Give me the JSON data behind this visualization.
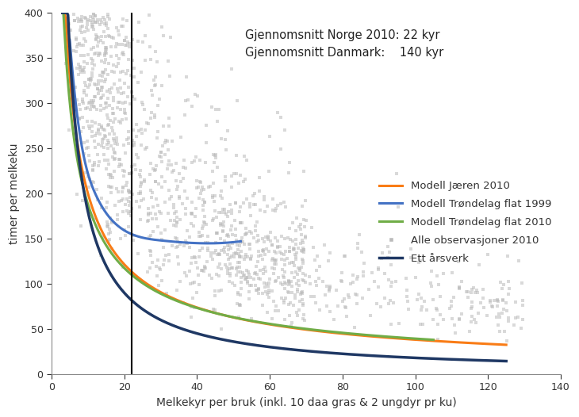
{
  "title_line1": "Gjennomsnitt Norge 2010: 22 kyr",
  "title_line2": "Gjennomsnitt Danmark:    140 kyr",
  "xlabel": "Melkekyr per bruk (inkl. 10 daa gras & 2 ungdyr pr ku)",
  "ylabel": "timer per melkeku",
  "xlim": [
    0,
    140
  ],
  "ylim": [
    0,
    400
  ],
  "xticks": [
    0,
    20,
    40,
    60,
    80,
    100,
    120,
    140
  ],
  "yticks": [
    0,
    50,
    100,
    150,
    200,
    250,
    300,
    350,
    400
  ],
  "vertical_line_x": 22,
  "legend_labels": [
    "Modell Jæren 2010",
    "Modell Trøndelag flat 1999",
    "Modell Trøndelag flat 2010",
    "Alle observasjoner 2010",
    "Ett årsverk"
  ],
  "legend_colors": [
    "#F97C16",
    "#4472C4",
    "#70AD47",
    "#1F3864"
  ],
  "scatter_color": "#BBBBBB",
  "scatter_alpha": 0.55,
  "scatter_marker": "s",
  "scatter_size": 6,
  "background_color": "#FFFFFF",
  "jaeren_x_start": 3,
  "jaeren_x_end": 125,
  "jaeren_a": 1050,
  "jaeren_b": 0.72,
  "trond2010_x_start": 3,
  "trond2010_x_end": 105,
  "trond2010_a": 900,
  "trond2010_b": 0.68,
  "arsverk_x_start": 3,
  "arsverk_x_end": 125,
  "arsverk_a": 1800,
  "arsverk_b": 1.0,
  "trond1999_x_start": 5,
  "trond1999_x_end": 52,
  "trond1999_pts_x": [
    5,
    8,
    12,
    18,
    22,
    30,
    40,
    52
  ],
  "trond1999_pts_y": [
    370,
    260,
    200,
    165,
    155,
    148,
    145,
    147
  ]
}
